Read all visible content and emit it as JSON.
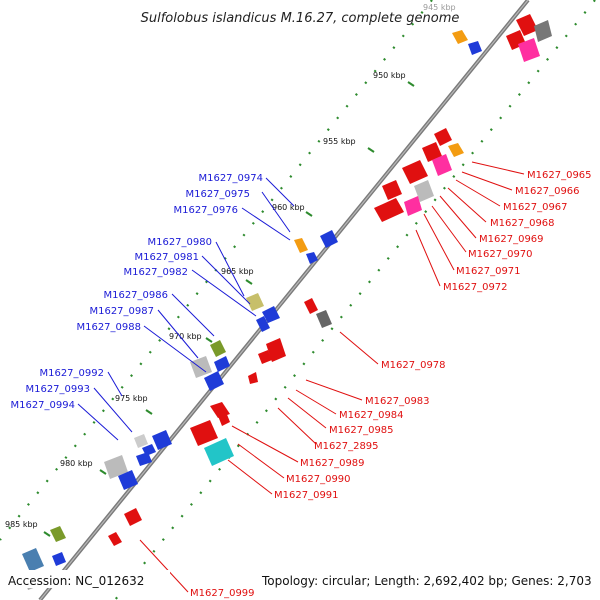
{
  "title": "Sulfolobus islandicus M.16.27, complete genome",
  "footer": {
    "accession": "Accession: NC_012632",
    "summary": "Topology: circular; Length: 2,692,402 bp; Genes: 2,703"
  },
  "scale_labels": [
    "945 kbp",
    "950 kbp",
    "955 kbp",
    "960 kbp",
    "965 kbp",
    "970 kbp",
    "975 kbp",
    "980 kbp",
    "985 kbp"
  ],
  "blue_labels": [
    "M1627_0974",
    "M1627_0975",
    "M1627_0976",
    "M1627_0980",
    "M1627_0981",
    "M1627_0982",
    "M1627_0986",
    "M1627_0987",
    "M1627_0988",
    "M1627_0992",
    "M1627_0993",
    "M1627_0994"
  ],
  "red_labels": [
    "M1627_0965",
    "M1627_0966",
    "M1627_0967",
    "M1627_0968",
    "M1627_0969",
    "M1627_0970",
    "M1627_0971",
    "M1627_0972",
    "M1627_0978",
    "M1627_0983",
    "M1627_0984",
    "M1627_0985",
    "M1627_2895",
    "M1627_0989",
    "M1627_0990",
    "M1627_0991",
    "M1627_0999"
  ],
  "colors": {
    "backbone": "#7a7a7a",
    "forward_label": "#1a1ad6",
    "reverse_label": "#e01010",
    "tick": "#2e8b2e"
  }
}
